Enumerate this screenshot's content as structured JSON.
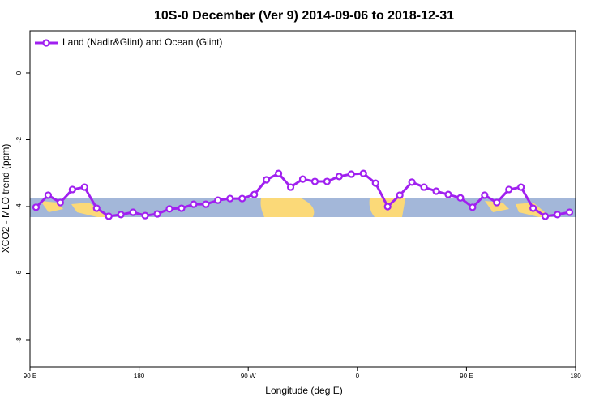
{
  "chart_data": {
    "type": "line",
    "title": "10S-0 December (Ver 9)   2014-09-06 to 2018-12-31",
    "x_label": "Longitude (deg E)",
    "y_label": "XCO2 - MLO trend (ppm)",
    "xlim": [
      90,
      540
    ],
    "xticks": [
      {
        "value": 90,
        "label": "90 E"
      },
      {
        "value": 180,
        "label": "180"
      },
      {
        "value": 270,
        "label": "90 W"
      },
      {
        "value": 360,
        "label": "0"
      },
      {
        "value": 450,
        "label": "90 E"
      },
      {
        "value": 540,
        "label": "180"
      }
    ],
    "ylim": [
      -8.8,
      1.26
    ],
    "yticks": [
      0,
      -2,
      -4,
      -6,
      -8
    ],
    "legend": "top-left",
    "x": [
      95,
      105,
      115,
      125,
      135,
      145,
      155,
      165,
      175,
      185,
      195,
      205,
      215,
      225,
      235,
      245,
      255,
      265,
      275,
      285,
      295,
      305,
      315,
      325,
      335,
      345,
      355,
      365,
      375,
      385,
      395,
      405,
      415,
      425,
      435,
      445,
      455,
      465,
      475,
      485,
      495,
      505,
      515,
      525,
      535
    ],
    "series": [
      {
        "name": "Land (Nadir&Glint) and Ocean (Glint)",
        "color": "#a020f0",
        "values": [
          -4.02,
          -3.66,
          -3.88,
          -3.49,
          -3.42,
          -4.05,
          -4.29,
          -4.24,
          -4.17,
          -4.27,
          -4.22,
          -4.07,
          -4.05,
          -3.93,
          -3.93,
          -3.81,
          -3.76,
          -3.76,
          -3.64,
          -3.2,
          -3.01,
          -3.42,
          -3.18,
          -3.25,
          -3.25,
          -3.1,
          -3.03,
          -3.01,
          -3.3,
          -4.0,
          -3.66,
          -3.27,
          -3.42,
          -3.54,
          -3.64,
          -3.74,
          -4.02,
          -3.66,
          -3.88,
          -3.49,
          -3.42,
          -4.05,
          -4.29,
          -4.24,
          -4.17
        ]
      }
    ]
  }
}
